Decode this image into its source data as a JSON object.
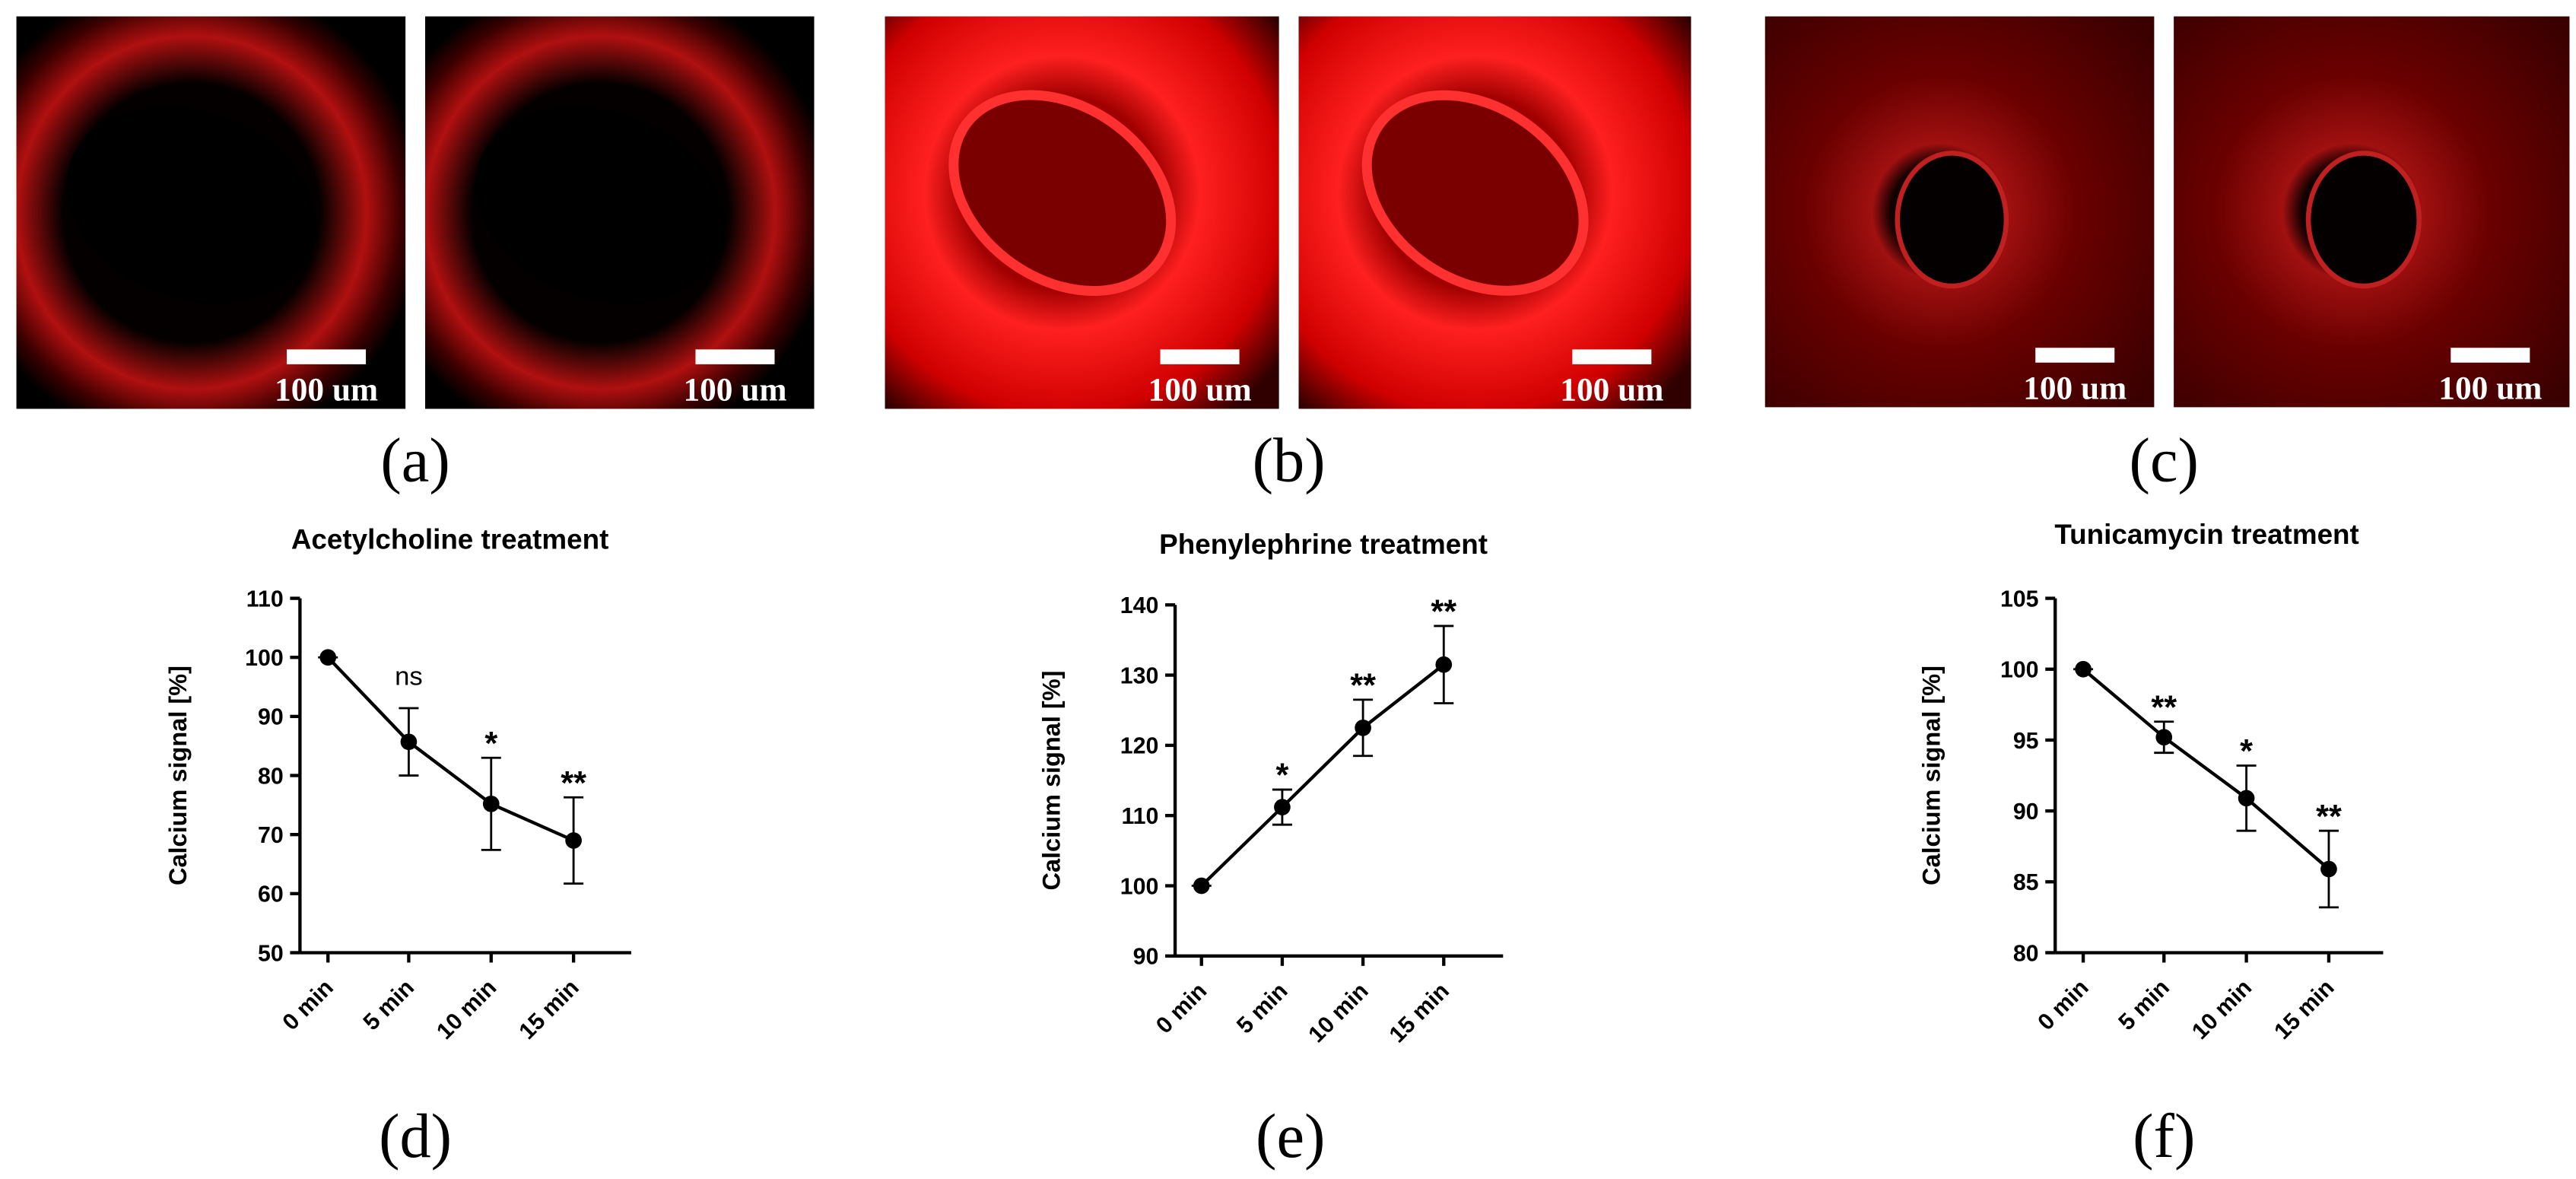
{
  "image_panels": [
    {
      "label": "(a)",
      "scale_bars": [
        "100 um",
        "100 um"
      ]
    },
    {
      "label": "(b)",
      "scale_bars": [
        "100 um",
        "100 um"
      ]
    },
    {
      "label": "(c)",
      "scale_bars": [
        "100 um",
        "100 um"
      ]
    }
  ],
  "chart_data": [
    {
      "type": "line",
      "title": "Acetylcholine treatment",
      "y_label": "Calcium signal [%]",
      "panel_label": "(d)",
      "categories": [
        "0 min",
        "5 min",
        "10 min",
        "15 min"
      ],
      "values": [
        100,
        85.7,
        75.2,
        69
      ],
      "errors": [
        0,
        5.7,
        7.8,
        7.3
      ],
      "annotations": [
        null,
        "ns",
        "*",
        "**"
      ],
      "color": "#000000",
      "ylim": [
        50,
        110
      ],
      "yticks": [
        50,
        60,
        70,
        80,
        90,
        100,
        110
      ]
    },
    {
      "type": "line",
      "title": "Phenylephrine treatment",
      "y_label": "Calcium signal [%]",
      "panel_label": "(e)",
      "categories": [
        "0 min",
        "5 min",
        "10 min",
        "15 min"
      ],
      "values": [
        100,
        111.2,
        122.5,
        131.5
      ],
      "errors": [
        0,
        2.5,
        4,
        5.5
      ],
      "annotations": [
        null,
        "*",
        "**",
        "**"
      ],
      "color": "#000000",
      "ylim": [
        90,
        140
      ],
      "yticks": [
        90,
        100,
        110,
        120,
        130,
        140
      ]
    },
    {
      "type": "line",
      "title": "Tunicamycin treatment",
      "y_label": "Calcium signal [%]",
      "panel_label": "(f)",
      "categories": [
        "0 min",
        "5 min",
        "10 min",
        "15 min"
      ],
      "values": [
        100,
        95.2,
        90.9,
        85.9
      ],
      "errors": [
        0,
        1.1,
        2.3,
        2.7
      ],
      "annotations": [
        null,
        "**",
        "*",
        "**"
      ],
      "color": "#000000",
      "ylim": [
        80,
        105
      ],
      "yticks": [
        80,
        85,
        90,
        95,
        100,
        105
      ]
    }
  ]
}
